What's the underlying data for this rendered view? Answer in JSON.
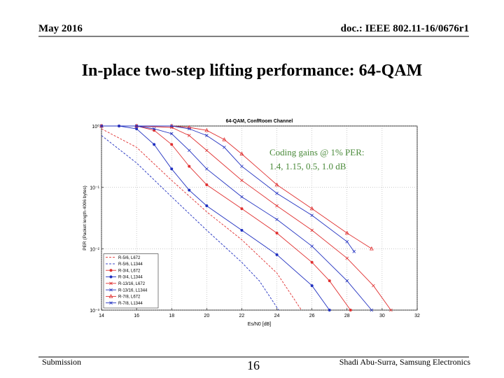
{
  "header": {
    "date": "May 2016",
    "doc": "doc.: IEEE 802.11-16/0676r1"
  },
  "slide_title": "In-place two-step lifting performance: 64-QAM",
  "annotation": [
    "Coding gains @ 1% PER:",
    "1.4, 1.15, 0.5, 1.0 dB"
  ],
  "chart_data": {
    "type": "line",
    "title": "64-QAM, ConfRoom Channel",
    "x_label": "Es/N0 [dB]",
    "y_label": "PER (Packet length 4096 bytes)",
    "xlim": [
      14,
      32
    ],
    "xticks": [
      14,
      16,
      18,
      20,
      22,
      24,
      26,
      28,
      30,
      32
    ],
    "ylim": [
      0.001,
      1
    ],
    "ylog": true,
    "yticks": [
      {
        "value": 1,
        "label": "10⁰"
      },
      {
        "value": 0.1,
        "label": "10⁻¹"
      },
      {
        "value": 0.01,
        "label": "10⁻²"
      },
      {
        "value": 0.001,
        "label": "10⁻³"
      }
    ],
    "grid": true,
    "legend": "lower left",
    "series": [
      {
        "name": "R-5/6, L672",
        "color": "#e03030",
        "dash": true,
        "marker": "none",
        "x": [
          14,
          16,
          18,
          20,
          22,
          24,
          25.4
        ],
        "values": [
          0.9,
          0.45,
          0.13,
          0.04,
          0.014,
          0.004,
          0.001
        ]
      },
      {
        "name": "R-5/6, L1344",
        "color": "#2030c0",
        "dash": true,
        "marker": "none",
        "x": [
          14,
          16,
          18,
          20,
          22,
          23,
          24.1
        ],
        "values": [
          0.7,
          0.25,
          0.07,
          0.02,
          0.006,
          0.003,
          0.001
        ]
      },
      {
        "name": "R-3/4, L672",
        "color": "#e03030",
        "dash": false,
        "marker": "o",
        "x": [
          14,
          15,
          16,
          17,
          18,
          19,
          20,
          22,
          24,
          26,
          27,
          28.2
        ],
        "values": [
          1,
          1,
          1,
          0.85,
          0.5,
          0.22,
          0.11,
          0.045,
          0.018,
          0.006,
          0.003,
          0.001
        ]
      },
      {
        "name": "R-3/4, L1344",
        "color": "#2030c0",
        "dash": false,
        "marker": "o",
        "x": [
          14,
          15,
          16,
          17,
          18,
          19,
          20,
          22,
          24,
          26,
          27
        ],
        "values": [
          1,
          1,
          0.9,
          0.5,
          0.2,
          0.09,
          0.05,
          0.02,
          0.008,
          0.0025,
          0.001
        ]
      },
      {
        "name": "R-13/16, L672",
        "color": "#e03030",
        "dash": false,
        "marker": "x",
        "x": [
          14,
          16,
          18,
          19,
          20,
          22,
          24,
          26,
          28,
          29.5,
          30.5
        ],
        "values": [
          1,
          1,
          0.95,
          0.7,
          0.4,
          0.13,
          0.05,
          0.02,
          0.007,
          0.0025,
          0.001
        ]
      },
      {
        "name": "R-13/16, L1344",
        "color": "#2030c0",
        "dash": false,
        "marker": "x",
        "x": [
          14,
          16,
          17,
          18,
          19,
          20,
          22,
          24,
          26,
          28,
          29.4
        ],
        "values": [
          1,
          1,
          0.9,
          0.75,
          0.4,
          0.2,
          0.07,
          0.03,
          0.011,
          0.003,
          0.001
        ]
      },
      {
        "name": "R-7/8, L672",
        "color": "#e03030",
        "dash": false,
        "marker": "^",
        "x": [
          14,
          16,
          18,
          19,
          20,
          21,
          22,
          24,
          26,
          28,
          29.4
        ],
        "values": [
          1,
          1,
          1,
          0.95,
          0.85,
          0.6,
          0.35,
          0.11,
          0.045,
          0.018,
          0.01
        ]
      },
      {
        "name": "R-7/8, L1344",
        "color": "#2030c0",
        "dash": false,
        "marker": "x",
        "x": [
          14,
          16,
          18,
          19,
          20,
          21,
          22,
          24,
          26,
          28,
          28.4
        ],
        "values": [
          1,
          1,
          1,
          0.9,
          0.7,
          0.45,
          0.22,
          0.08,
          0.035,
          0.013,
          0.009
        ]
      }
    ]
  },
  "footer": {
    "left": "Submission",
    "page": "16",
    "author": "Shadi Abu-Surra, Samsung Electronics"
  }
}
